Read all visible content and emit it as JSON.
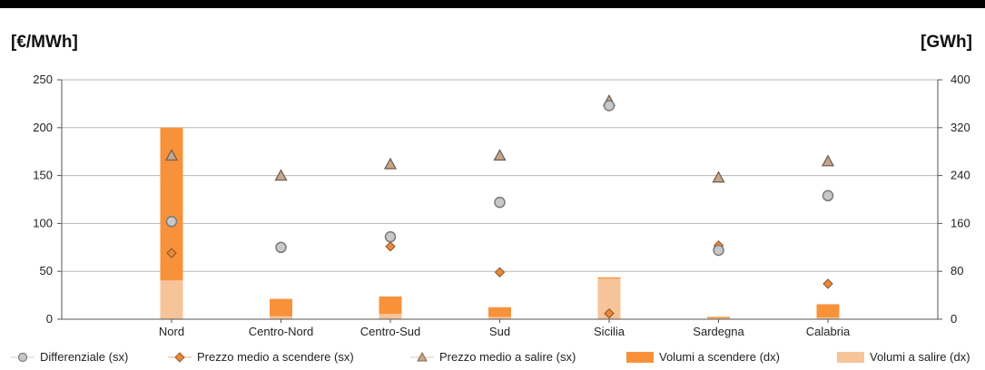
{
  "header": {
    "left_unit": "[€/MWh]",
    "right_unit": "[GWh]"
  },
  "colors": {
    "differenziale_fill": "#c8c8c8",
    "differenziale_stroke": "#7a7a7a",
    "scendere_marker": "#e8893a",
    "salire_marker": "#c9a58a",
    "volumi_scendere": "#f7923a",
    "volumi_salire": "#f7c499",
    "grid": "#b8b8b8"
  },
  "chart_data": {
    "type": "bar",
    "categories": [
      "Nord",
      "Centro-Nord",
      "Centro-Sud",
      "Sud",
      "Sicilia",
      "Sardegna",
      "Calabria"
    ],
    "y_left": {
      "label": "[€/MWh]",
      "ticks": [
        0,
        50,
        100,
        150,
        200,
        250
      ],
      "ylim": [
        0,
        250
      ]
    },
    "y_right": {
      "label": "[GWh]",
      "ticks": [
        0,
        80,
        160,
        240,
        320,
        400
      ],
      "ylim": [
        0,
        400
      ]
    },
    "grid": true,
    "legend_position": "bottom",
    "series": [
      {
        "name": "Differenziale (sx)",
        "kind": "scatter",
        "axis": "left",
        "marker": "circle",
        "values": [
          102,
          75,
          86,
          122,
          223,
          72,
          129
        ]
      },
      {
        "name": "Prezzo medio a scendere (sx)",
        "kind": "scatter",
        "axis": "left",
        "marker": "diamond",
        "values": [
          69,
          75,
          76,
          49,
          6,
          77,
          37
        ]
      },
      {
        "name": "Prezzo medio a salire (sx)",
        "kind": "scatter",
        "axis": "left",
        "marker": "triangle",
        "values": [
          171,
          150,
          162,
          171,
          228,
          148,
          165
        ]
      },
      {
        "name": "Volumi a scendere (dx)",
        "kind": "bar",
        "axis": "right",
        "values": [
          320,
          34,
          38,
          20,
          70,
          4,
          25
        ]
      },
      {
        "name": "Volumi a salire (dx)",
        "kind": "bar",
        "axis": "right",
        "values": [
          65,
          5,
          9,
          4,
          68,
          2,
          3
        ]
      }
    ]
  }
}
